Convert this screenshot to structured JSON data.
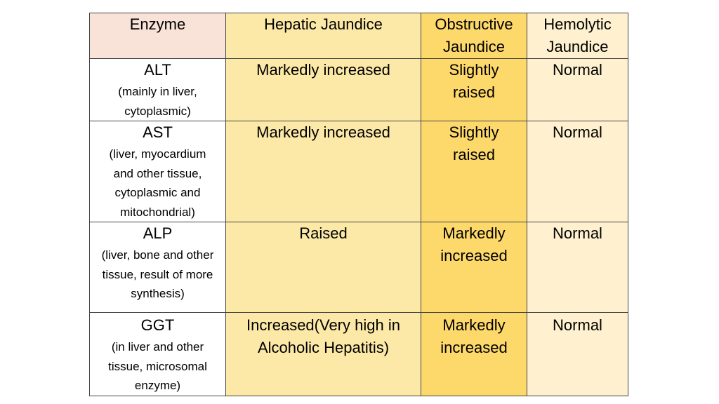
{
  "table": {
    "headers": [
      "Enzyme",
      "Hepatic Jaundice",
      "Obstructive Jaundice",
      "Hemolytic Jaundice"
    ],
    "rows": [
      {
        "enzyme": "ALT",
        "note": "(mainly in liver, cytoplasmic)",
        "hepatic": "Markedly increased",
        "obstructive": "Slightly raised",
        "hemolytic": "Normal"
      },
      {
        "enzyme": "AST",
        "note": "(liver, myocardium and other tissue, cytoplasmic and mitochondrial)",
        "hepatic": "Markedly increased",
        "obstructive": "Slightly raised",
        "hemolytic": "Normal"
      },
      {
        "enzyme": "ALP",
        "note": "(liver, bone and other tissue, result of more synthesis)",
        "hepatic": "Raised",
        "obstructive": "Markedly increased",
        "hemolytic": "Normal"
      },
      {
        "enzyme": "GGT",
        "note": "(in liver and other tissue, microsomal enzyme)",
        "hepatic": "Increased(Very high in Alcoholic Hepatitis)",
        "obstructive": "Markedly increased",
        "hemolytic": "Normal"
      }
    ]
  },
  "colors": {
    "enzyme_header_bg": "#f9e2d8",
    "hepatic_bg": "#fde9a7",
    "obstructive_bg": "#fdd86b",
    "hemolytic_bg": "#fff1cf",
    "border": "#444444"
  }
}
